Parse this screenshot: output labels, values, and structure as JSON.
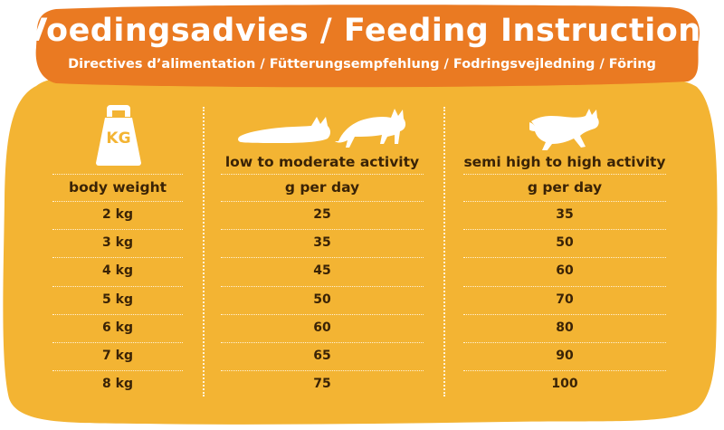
{
  "header": {
    "title": "Voedingsadvies / Feeding Instruction",
    "subtitle": "Directives d’alimentation / Fütterungsempfehlung / Fodringsvejledning / Föring"
  },
  "colors": {
    "banner": "#ea7a22",
    "card": "#f3b433",
    "text": "#3a2306",
    "divider": "#fff2d6"
  },
  "icons": {
    "weight": "kg-weight-icon",
    "low_activity": "resting-cats-icon",
    "high_activity": "running-cat-icon"
  },
  "weight_icon_label": "KG",
  "table": {
    "columns": [
      {
        "header": "body weight",
        "subheader": ""
      },
      {
        "header": "low to moderate activity",
        "subheader": "g per day"
      },
      {
        "header": "semi high to high activity",
        "subheader": "g per day"
      }
    ],
    "rows": [
      [
        "2 kg",
        "25",
        "35"
      ],
      [
        "3 kg",
        "35",
        "50"
      ],
      [
        "4 kg",
        "45",
        "60"
      ],
      [
        "5 kg",
        "50",
        "70"
      ],
      [
        "6 kg",
        "60",
        "80"
      ],
      [
        "7 kg",
        "65",
        "90"
      ],
      [
        "8 kg",
        "75",
        "100"
      ]
    ]
  }
}
